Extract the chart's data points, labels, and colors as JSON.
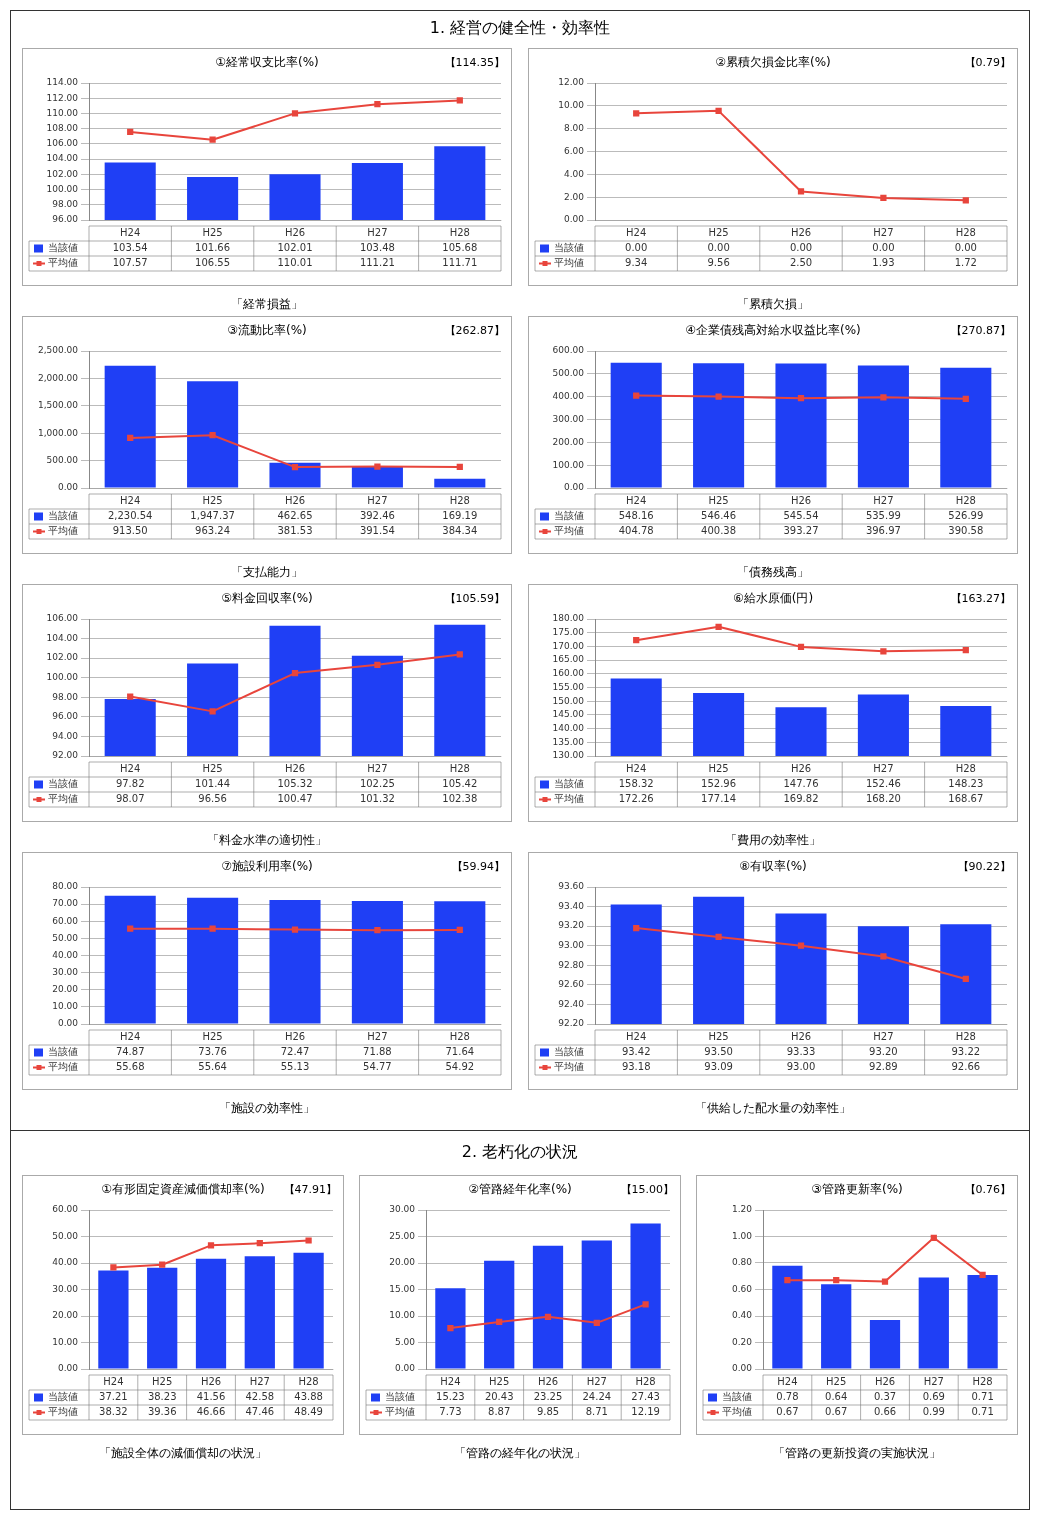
{
  "chart_data": [
    {
      "type": "bar",
      "title": "①経常収支比率(%)",
      "categories": [
        "H24",
        "H25",
        "H26",
        "H27",
        "H28"
      ],
      "series": [
        {
          "name": "当該値",
          "color": "#1f3ff5",
          "values": [
            103.54,
            101.66,
            102.01,
            103.48,
            105.68
          ],
          "value_labels": [
            "103.54",
            "101.66",
            "102.01",
            "103.48",
            "105.68"
          ]
        },
        {
          "name": "平均値",
          "type": "line",
          "color": "#e8453c",
          "values": [
            107.57,
            106.55,
            110.01,
            111.21,
            111.71
          ],
          "value_labels": [
            "107.57",
            "106.55",
            "110.01",
            "111.21",
            "111.71"
          ]
        }
      ],
      "ylim": [
        96,
        114
      ],
      "yticks": [
        {
          "value": 96,
          "label": "96.00"
        },
        {
          "value": 98,
          "label": "98.00"
        },
        {
          "value": 100,
          "label": "100.00"
        },
        {
          "value": 102,
          "label": "102.00"
        },
        {
          "value": 104,
          "label": "104.00"
        },
        {
          "value": 106,
          "label": "106.00"
        },
        {
          "value": 108,
          "label": "108.00"
        },
        {
          "value": 110,
          "label": "110.00"
        },
        {
          "value": 112,
          "label": "112.00"
        },
        {
          "value": 114,
          "label": "114.00"
        }
      ],
      "grid": "y",
      "legend": "bottom left",
      "marker": "square",
      "annotations": [
        "【114.35】",
        "「経常損益」",
        "1. 経営の健全性・効率性"
      ]
    },
    {
      "type": "bar",
      "title": "②累積欠損金比率(%)",
      "categories": [
        "H24",
        "H25",
        "H26",
        "H27",
        "H28"
      ],
      "series": [
        {
          "name": "当該値",
          "color": "#1f3ff5",
          "values": [
            0,
            0,
            0,
            0,
            0
          ],
          "value_labels": [
            "0.00",
            "0.00",
            "0.00",
            "0.00",
            "0.00"
          ]
        },
        {
          "name": "平均値",
          "type": "line",
          "color": "#e8453c",
          "values": [
            9.34,
            9.56,
            2.5,
            1.93,
            1.72
          ],
          "value_labels": [
            "9.34",
            "9.56",
            "2.50",
            "1.93",
            "1.72"
          ]
        }
      ],
      "ylim": [
        0,
        12
      ],
      "yticks": [
        {
          "value": 0,
          "label": "0.00"
        },
        {
          "value": 2,
          "label": "2.00"
        },
        {
          "value": 4,
          "label": "4.00"
        },
        {
          "value": 6,
          "label": "6.00"
        },
        {
          "value": 8,
          "label": "8.00"
        },
        {
          "value": 10,
          "label": "10.00"
        },
        {
          "value": 12,
          "label": "12.00"
        }
      ],
      "grid": "y",
      "legend": "bottom left",
      "marker": "square",
      "annotations": [
        "【0.79】",
        "「累積欠損」"
      ]
    },
    {
      "type": "bar",
      "title": "③流動比率(%)",
      "categories": [
        "H24",
        "H25",
        "H26",
        "H27",
        "H28"
      ],
      "series": [
        {
          "name": "当該値",
          "color": "#1f3ff5",
          "values": [
            2230.54,
            1947.37,
            462.65,
            392.46,
            169.19
          ],
          "value_labels": [
            "2,230.54",
            "1,947.37",
            "462.65",
            "392.46",
            "169.19"
          ]
        },
        {
          "name": "平均値",
          "type": "line",
          "color": "#e8453c",
          "values": [
            913.5,
            963.24,
            381.53,
            391.54,
            384.34
          ],
          "value_labels": [
            "913.50",
            "963.24",
            "381.53",
            "391.54",
            "384.34"
          ]
        }
      ],
      "ylim": [
        0,
        2500
      ],
      "yticks": [
        {
          "value": 0,
          "label": "0.00"
        },
        {
          "value": 500,
          "label": "500.00"
        },
        {
          "value": 1000,
          "label": "1,000.00"
        },
        {
          "value": 1500,
          "label": "1,500.00"
        },
        {
          "value": 2000,
          "label": "2,000.00"
        },
        {
          "value": 2500,
          "label": "2,500.00"
        }
      ],
      "grid": "y",
      "legend": "bottom left",
      "marker": "square",
      "annotations": [
        "【262.87】",
        "「支払能力」"
      ]
    },
    {
      "type": "bar",
      "title": "④企業債残高対給水収益比率(%)",
      "categories": [
        "H24",
        "H25",
        "H26",
        "H27",
        "H28"
      ],
      "series": [
        {
          "name": "当該値",
          "color": "#1f3ff5",
          "values": [
            548.16,
            546.46,
            545.54,
            535.99,
            526.99
          ],
          "value_labels": [
            "548.16",
            "546.46",
            "545.54",
            "535.99",
            "526.99"
          ]
        },
        {
          "name": "平均値",
          "type": "line",
          "color": "#e8453c",
          "values": [
            404.78,
            400.38,
            393.27,
            396.97,
            390.58
          ],
          "value_labels": [
            "404.78",
            "400.38",
            "393.27",
            "396.97",
            "390.58"
          ]
        }
      ],
      "ylim": [
        0,
        600
      ],
      "yticks": [
        {
          "value": 0,
          "label": "0.00"
        },
        {
          "value": 100,
          "label": "100.00"
        },
        {
          "value": 200,
          "label": "200.00"
        },
        {
          "value": 300,
          "label": "300.00"
        },
        {
          "value": 400,
          "label": "400.00"
        },
        {
          "value": 500,
          "label": "500.00"
        },
        {
          "value": 600,
          "label": "600.00"
        }
      ],
      "grid": "y",
      "legend": "bottom left",
      "marker": "square",
      "annotations": [
        "【270.87】",
        "「債務残高」"
      ]
    },
    {
      "type": "bar",
      "title": "⑤料金回収率(%)",
      "categories": [
        "H24",
        "H25",
        "H26",
        "H27",
        "H28"
      ],
      "series": [
        {
          "name": "当該値",
          "color": "#1f3ff5",
          "values": [
            97.82,
            101.44,
            105.32,
            102.25,
            105.42
          ],
          "value_labels": [
            "97.82",
            "101.44",
            "105.32",
            "102.25",
            "105.42"
          ]
        },
        {
          "name": "平均値",
          "type": "line",
          "color": "#e8453c",
          "values": [
            98.07,
            96.56,
            100.47,
            101.32,
            102.38
          ],
          "value_labels": [
            "98.07",
            "96.56",
            "100.47",
            "101.32",
            "102.38"
          ]
        }
      ],
      "ylim": [
        92,
        106
      ],
      "yticks": [
        {
          "value": 92,
          "label": "92.00"
        },
        {
          "value": 94,
          "label": "94.00"
        },
        {
          "value": 96,
          "label": "96.00"
        },
        {
          "value": 98,
          "label": "98.00"
        },
        {
          "value": 100,
          "label": "100.00"
        },
        {
          "value": 102,
          "label": "102.00"
        },
        {
          "value": 104,
          "label": "104.00"
        },
        {
          "value": 106,
          "label": "106.00"
        }
      ],
      "grid": "y",
      "legend": "bottom left",
      "marker": "square",
      "annotations": [
        "【105.59】",
        "「料金水準の適切性」"
      ]
    },
    {
      "type": "bar",
      "title": "⑥給水原価(円)",
      "categories": [
        "H24",
        "H25",
        "H26",
        "H27",
        "H28"
      ],
      "series": [
        {
          "name": "当該値",
          "color": "#1f3ff5",
          "values": [
            158.32,
            152.96,
            147.76,
            152.46,
            148.23
          ],
          "value_labels": [
            "158.32",
            "152.96",
            "147.76",
            "152.46",
            "148.23"
          ]
        },
        {
          "name": "平均値",
          "type": "line",
          "color": "#e8453c",
          "values": [
            172.26,
            177.14,
            169.82,
            168.2,
            168.67
          ],
          "value_labels": [
            "172.26",
            "177.14",
            "169.82",
            "168.20",
            "168.67"
          ]
        }
      ],
      "ylim": [
        130,
        180
      ],
      "yticks": [
        {
          "value": 130,
          "label": "130.00"
        },
        {
          "value": 135,
          "label": "135.00"
        },
        {
          "value": 140,
          "label": "140.00"
        },
        {
          "value": 145,
          "label": "145.00"
        },
        {
          "value": 150,
          "label": "150.00"
        },
        {
          "value": 155,
          "label": "155.00"
        },
        {
          "value": 160,
          "label": "160.00"
        },
        {
          "value": 165,
          "label": "165.00"
        },
        {
          "value": 170,
          "label": "170.00"
        },
        {
          "value": 175,
          "label": "175.00"
        },
        {
          "value": 180,
          "label": "180.00"
        }
      ],
      "grid": "y",
      "legend": "bottom left",
      "marker": "square",
      "annotations": [
        "【163.27】",
        "「費用の効率性」"
      ]
    },
    {
      "type": "bar",
      "title": "⑦施設利用率(%)",
      "categories": [
        "H24",
        "H25",
        "H26",
        "H27",
        "H28"
      ],
      "series": [
        {
          "name": "当該値",
          "color": "#1f3ff5",
          "values": [
            74.87,
            73.76,
            72.47,
            71.88,
            71.64
          ],
          "value_labels": [
            "74.87",
            "73.76",
            "72.47",
            "71.88",
            "71.64"
          ]
        },
        {
          "name": "平均値",
          "type": "line",
          "color": "#e8453c",
          "values": [
            55.68,
            55.64,
            55.13,
            54.77,
            54.92
          ],
          "value_labels": [
            "55.68",
            "55.64",
            "55.13",
            "54.77",
            "54.92"
          ]
        }
      ],
      "ylim": [
        0,
        80
      ],
      "yticks": [
        {
          "value": 0,
          "label": "0.00"
        },
        {
          "value": 10,
          "label": "10.00"
        },
        {
          "value": 20,
          "label": "20.00"
        },
        {
          "value": 30,
          "label": "30.00"
        },
        {
          "value": 40,
          "label": "40.00"
        },
        {
          "value": 50,
          "label": "50.00"
        },
        {
          "value": 60,
          "label": "60.00"
        },
        {
          "value": 70,
          "label": "70.00"
        },
        {
          "value": 80,
          "label": "80.00"
        }
      ],
      "grid": "y",
      "legend": "bottom left",
      "marker": "square",
      "annotations": [
        "【59.94】",
        "「施設の効率性」"
      ]
    },
    {
      "type": "bar",
      "title": "⑧有収率(%)",
      "categories": [
        "H24",
        "H25",
        "H26",
        "H27",
        "H28"
      ],
      "series": [
        {
          "name": "当該値",
          "color": "#1f3ff5",
          "values": [
            93.42,
            93.5,
            93.33,
            93.2,
            93.22
          ],
          "value_labels": [
            "93.42",
            "93.50",
            "93.33",
            "93.20",
            "93.22"
          ]
        },
        {
          "name": "平均値",
          "type": "line",
          "color": "#e8453c",
          "values": [
            93.18,
            93.09,
            93.0,
            92.89,
            92.66
          ],
          "value_labels": [
            "93.18",
            "93.09",
            "93.00",
            "92.89",
            "92.66"
          ]
        }
      ],
      "ylim": [
        92.2,
        93.6
      ],
      "yticks": [
        {
          "value": 92.2,
          "label": "92.20"
        },
        {
          "value": 92.4,
          "label": "92.40"
        },
        {
          "value": 92.6,
          "label": "92.60"
        },
        {
          "value": 92.8,
          "label": "92.80"
        },
        {
          "value": 93,
          "label": "93.00"
        },
        {
          "value": 93.2,
          "label": "93.20"
        },
        {
          "value": 93.4,
          "label": "93.40"
        },
        {
          "value": 93.6,
          "label": "93.60"
        }
      ],
      "grid": "y",
      "legend": "bottom left",
      "marker": "square",
      "annotations": [
        "【90.22】",
        "「供給した配水量の効率性」"
      ]
    },
    {
      "type": "bar",
      "title": "①有形固定資産減価償却率(%)",
      "categories": [
        "H24",
        "H25",
        "H26",
        "H27",
        "H28"
      ],
      "series": [
        {
          "name": "当該値",
          "color": "#1f3ff5",
          "values": [
            37.21,
            38.23,
            41.56,
            42.58,
            43.88
          ],
          "value_labels": [
            "37.21",
            "38.23",
            "41.56",
            "42.58",
            "43.88"
          ]
        },
        {
          "name": "平均値",
          "type": "line",
          "color": "#e8453c",
          "values": [
            38.32,
            39.36,
            46.66,
            47.46,
            48.49
          ],
          "value_labels": [
            "38.32",
            "39.36",
            "46.66",
            "47.46",
            "48.49"
          ]
        }
      ],
      "ylim": [
        0,
        60
      ],
      "yticks": [
        {
          "value": 0,
          "label": "0.00"
        },
        {
          "value": 10,
          "label": "10.00"
        },
        {
          "value": 20,
          "label": "20.00"
        },
        {
          "value": 30,
          "label": "30.00"
        },
        {
          "value": 40,
          "label": "40.00"
        },
        {
          "value": 50,
          "label": "50.00"
        },
        {
          "value": 60,
          "label": "60.00"
        }
      ],
      "grid": "y",
      "legend": "bottom left",
      "marker": "square",
      "annotations": [
        "【47.91】",
        "「施設全体の減価償却の状況」",
        "2. 老朽化の状況"
      ]
    },
    {
      "type": "bar",
      "title": "②管路経年化率(%)",
      "categories": [
        "H24",
        "H25",
        "H26",
        "H27",
        "H28"
      ],
      "series": [
        {
          "name": "当該値",
          "color": "#1f3ff5",
          "values": [
            15.23,
            20.43,
            23.25,
            24.24,
            27.43
          ],
          "value_labels": [
            "15.23",
            "20.43",
            "23.25",
            "24.24",
            "27.43"
          ]
        },
        {
          "name": "平均値",
          "type": "line",
          "color": "#e8453c",
          "values": [
            7.73,
            8.87,
            9.85,
            8.71,
            12.19
          ],
          "value_labels": [
            "7.73",
            "8.87",
            "9.85",
            "8.71",
            "12.19"
          ]
        }
      ],
      "ylim": [
        0,
        30
      ],
      "yticks": [
        {
          "value": 0,
          "label": "0.00"
        },
        {
          "value": 5,
          "label": "5.00"
        },
        {
          "value": 10,
          "label": "10.00"
        },
        {
          "value": 15,
          "label": "15.00"
        },
        {
          "value": 20,
          "label": "20.00"
        },
        {
          "value": 25,
          "label": "25.00"
        },
        {
          "value": 30,
          "label": "30.00"
        }
      ],
      "grid": "y",
      "legend": "bottom left",
      "marker": "square",
      "annotations": [
        "【15.00】",
        "「管路の経年化の状況」"
      ]
    },
    {
      "type": "bar",
      "title": "③管路更新率(%)",
      "categories": [
        "H24",
        "H25",
        "H26",
        "H27",
        "H28"
      ],
      "series": [
        {
          "name": "当該値",
          "color": "#1f3ff5",
          "values": [
            0.78,
            0.64,
            0.37,
            0.69,
            0.71
          ],
          "value_labels": [
            "0.78",
            "0.64",
            "0.37",
            "0.69",
            "0.71"
          ]
        },
        {
          "name": "平均値",
          "type": "line",
          "color": "#e8453c",
          "values": [
            0.67,
            0.67,
            0.66,
            0.99,
            0.71
          ],
          "value_labels": [
            "0.67",
            "0.67",
            "0.66",
            "0.99",
            "0.71"
          ]
        }
      ],
      "ylim": [
        0,
        1.2
      ],
      "yticks": [
        {
          "value": 0,
          "label": "0.00"
        },
        {
          "value": 0.2,
          "label": "0.20"
        },
        {
          "value": 0.4,
          "label": "0.40"
        },
        {
          "value": 0.6,
          "label": "0.60"
        },
        {
          "value": 0.8,
          "label": "0.80"
        },
        {
          "value": 1,
          "label": "1.00"
        },
        {
          "value": 1.2,
          "label": "1.20"
        }
      ],
      "grid": "y",
      "legend": "bottom left",
      "marker": "square",
      "annotations": [
        "【0.76】",
        "「管路の更新投資の実施状況」"
      ]
    }
  ]
}
